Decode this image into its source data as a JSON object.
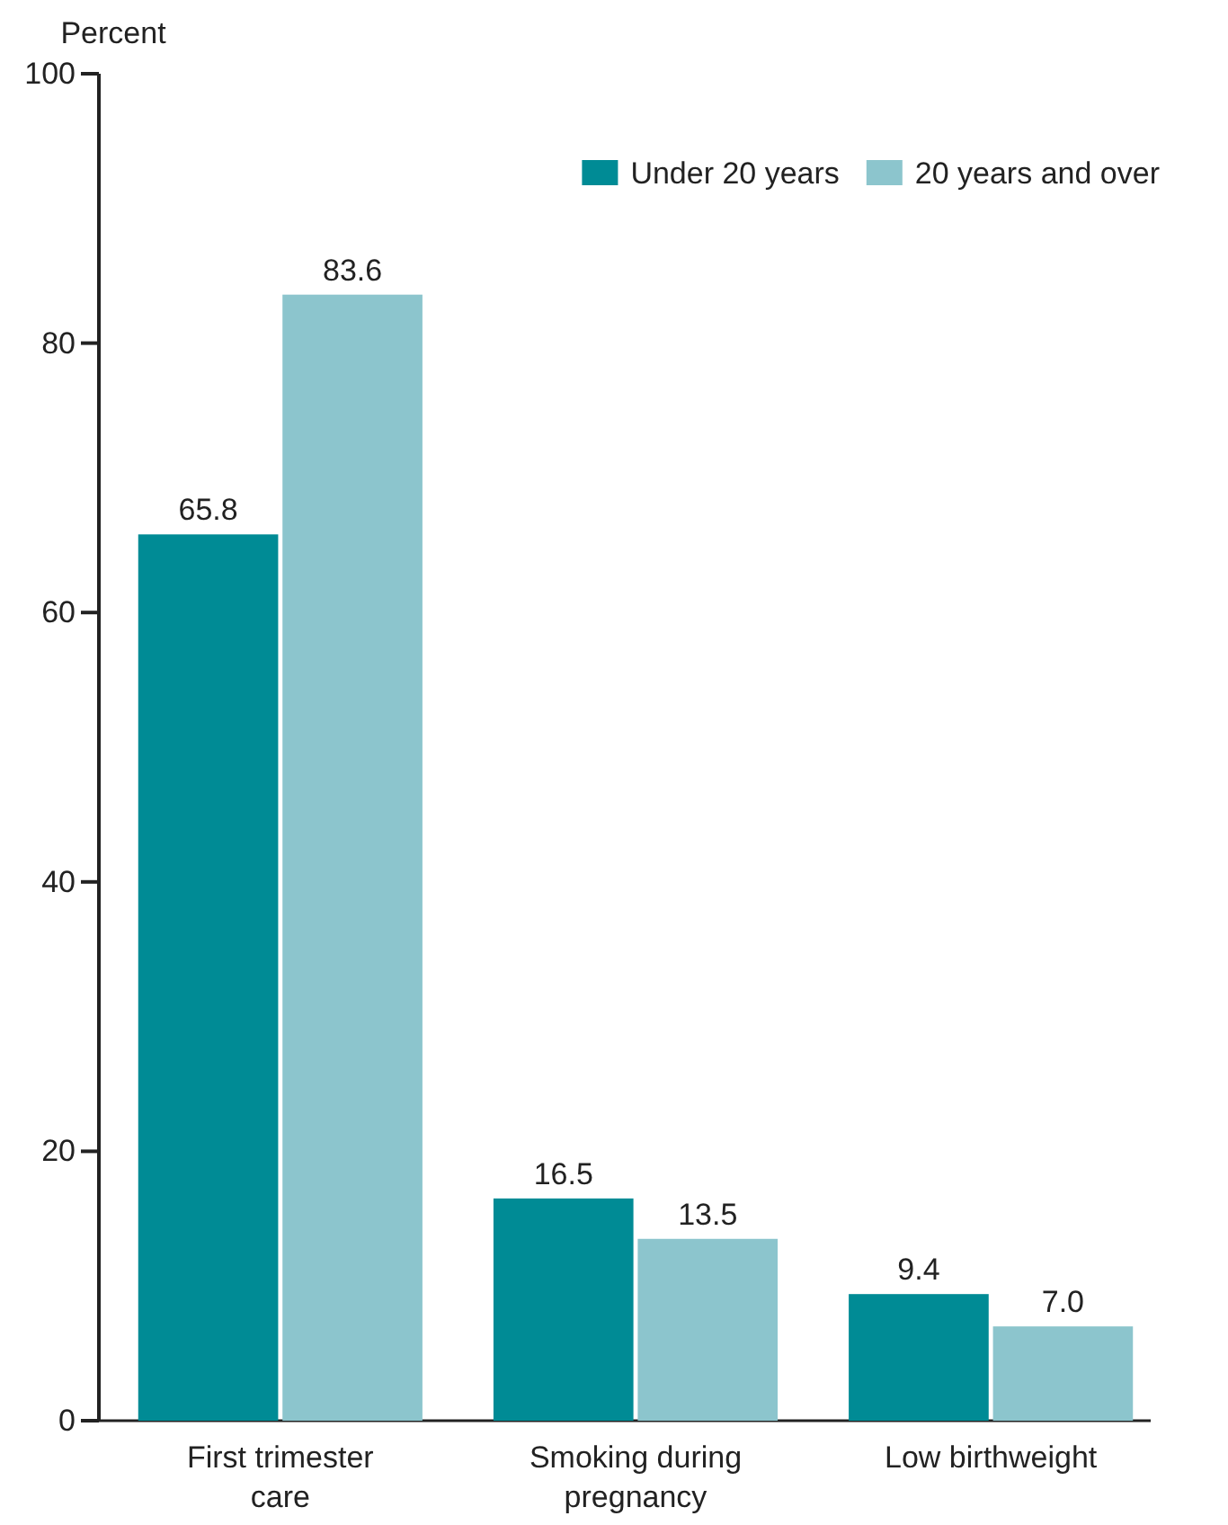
{
  "chart_data": {
    "type": "bar",
    "ylabel": "Percent",
    "categories": [
      "First trimester care",
      "Smoking during pregnancy",
      "Low birthweight"
    ],
    "series": [
      {
        "name": "Under 20 years",
        "color": "#008b95",
        "values": [
          65.8,
          16.5,
          9.4
        ],
        "value_labels": [
          "65.8",
          "16.5",
          "9.4"
        ]
      },
      {
        "name": "20 years and over",
        "color": "#8cc5cd",
        "values": [
          83.6,
          13.5,
          7.0
        ],
        "value_labels": [
          "83.6",
          "13.5",
          "7.0"
        ]
      }
    ],
    "ylim": [
      0,
      100
    ],
    "yticks": [
      0,
      20,
      40,
      60,
      80,
      100
    ],
    "legend": "top right",
    "grid": false
  }
}
